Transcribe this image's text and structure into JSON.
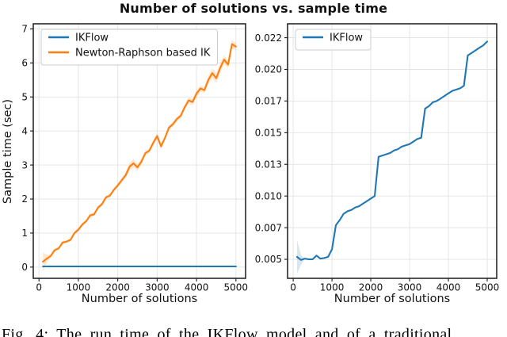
{
  "title": "Number of solutions vs. sample time",
  "caption": "Fig. 4: The run time of the IKFlow model and of a traditional",
  "colors": {
    "blue": "#1f77b4",
    "orange": "#ff7f0e",
    "grid": "#e3e3e3",
    "spine": "#1a1a1a",
    "legend_edge": "#cccccc"
  },
  "chart_data": [
    {
      "type": "line",
      "xlabel": "Number of solutions",
      "ylabel": "Sample time (sec)",
      "xlim": [
        -145,
        5245
      ],
      "ylim": [
        -0.33,
        7.15
      ],
      "xticks": [
        0,
        1000,
        2000,
        3000,
        4000,
        5000
      ],
      "xtick_labels": [
        "0",
        "1000",
        "2000",
        "3000",
        "4000",
        "5000"
      ],
      "yticks": [
        0,
        1,
        2,
        3,
        4,
        5,
        6,
        7
      ],
      "ytick_labels": [
        "0",
        "1",
        "2",
        "3",
        "4",
        "5",
        "6",
        "7"
      ],
      "grid": true,
      "legend_position": "upper-left",
      "series": [
        {
          "name": "IKFlow",
          "color": "#1f77b4",
          "x": [
            100,
            5000
          ],
          "y": [
            0.02,
            0.02
          ]
        },
        {
          "name": "Newton-Raphson based IK",
          "color": "#ff7f0e",
          "band_color": "rgba(255,127,14,0.18)",
          "x": [
            100,
            200,
            300,
            400,
            500,
            600,
            700,
            800,
            900,
            1000,
            1100,
            1200,
            1300,
            1400,
            1500,
            1600,
            1700,
            1800,
            1900,
            2000,
            2100,
            2200,
            2300,
            2400,
            2500,
            2600,
            2700,
            2800,
            2900,
            3000,
            3100,
            3200,
            3300,
            3400,
            3500,
            3600,
            3700,
            3800,
            3900,
            4000,
            4100,
            4200,
            4300,
            4400,
            4500,
            4600,
            4700,
            4800,
            4900,
            5000
          ],
          "y": [
            0.16,
            0.25,
            0.33,
            0.5,
            0.55,
            0.72,
            0.75,
            0.8,
            1.0,
            1.1,
            1.25,
            1.35,
            1.52,
            1.55,
            1.75,
            1.85,
            2.05,
            2.1,
            2.27,
            2.4,
            2.55,
            2.7,
            2.95,
            3.05,
            2.93,
            3.1,
            3.35,
            3.42,
            3.65,
            3.85,
            3.55,
            3.8,
            4.1,
            4.2,
            4.35,
            4.45,
            4.7,
            4.9,
            4.85,
            5.1,
            5.25,
            5.2,
            5.5,
            5.7,
            5.55,
            5.85,
            6.1,
            5.95,
            6.55,
            6.48
          ],
          "band": [
            0.28,
            0.12,
            0.05,
            0.05,
            0.04,
            0.05,
            0.04,
            0.04,
            0.05,
            0.05,
            0.06,
            0.05,
            0.06,
            0.05,
            0.06,
            0.05,
            0.06,
            0.05,
            0.06,
            0.06,
            0.07,
            0.08,
            0.12,
            0.12,
            0.1,
            0.09,
            0.07,
            0.07,
            0.08,
            0.09,
            0.08,
            0.07,
            0.07,
            0.07,
            0.07,
            0.07,
            0.08,
            0.09,
            0.1,
            0.1,
            0.09,
            0.09,
            0.12,
            0.14,
            0.15,
            0.14,
            0.13,
            0.12,
            0.12,
            0.1
          ]
        }
      ]
    },
    {
      "type": "line",
      "xlabel": "Number of solutions",
      "ylabel": "",
      "xlim": [
        -145,
        5245
      ],
      "ylim": [
        0.0035,
        0.0236
      ],
      "xticks": [
        0,
        1000,
        2000,
        3000,
        4000,
        5000
      ],
      "xtick_labels": [
        "0",
        "1000",
        "2000",
        "3000",
        "4000",
        "5000"
      ],
      "yticks": [
        0.005,
        0.0075,
        0.01,
        0.0125,
        0.015,
        0.0175,
        0.02,
        0.0225
      ],
      "ytick_labels": [
        "0.005",
        "0.007",
        "0.010",
        "0.013",
        "0.015",
        "0.017",
        "0.020",
        "0.022"
      ],
      "grid": true,
      "legend_position": "upper-left",
      "series": [
        {
          "name": "IKFlow",
          "color": "#1f77b4",
          "band_color": "rgba(31,119,180,0.18)",
          "x": [
            100,
            200,
            300,
            400,
            500,
            600,
            700,
            800,
            900,
            1000,
            1100,
            1200,
            1300,
            1400,
            1500,
            1600,
            1700,
            1800,
            1900,
            2000,
            2100,
            2200,
            2300,
            2400,
            2500,
            2600,
            2700,
            2800,
            2900,
            3000,
            3100,
            3200,
            3300,
            3400,
            3500,
            3600,
            3700,
            3800,
            3900,
            4000,
            4100,
            4200,
            4300,
            4400,
            4500,
            4600,
            4700,
            4800,
            4900,
            5000
          ],
          "y": [
            0.0052,
            0.00495,
            0.00505,
            0.005,
            0.005,
            0.0053,
            0.00505,
            0.0051,
            0.0052,
            0.0058,
            0.0077,
            0.0081,
            0.0086,
            0.0088,
            0.0089,
            0.0091,
            0.0092,
            0.0094,
            0.0096,
            0.0098,
            0.01,
            0.0131,
            0.0132,
            0.0133,
            0.0134,
            0.0136,
            0.0137,
            0.0139,
            0.014,
            0.0141,
            0.0143,
            0.0145,
            0.0146,
            0.0169,
            0.0171,
            0.0174,
            0.0175,
            0.0177,
            0.0179,
            0.0181,
            0.0183,
            0.0184,
            0.0185,
            0.0187,
            0.0211,
            0.0213,
            0.0215,
            0.0217,
            0.0219,
            0.0222
          ],
          "band": [
            0.0013,
            0.0004,
            0,
            0,
            0,
            0,
            0,
            0,
            0,
            0,
            0,
            0,
            0,
            0,
            0,
            0,
            0,
            0,
            0,
            0,
            0,
            0,
            0,
            0,
            0,
            0,
            0,
            0,
            0,
            0,
            0,
            0,
            0,
            0,
            0,
            0,
            0,
            0,
            0,
            0,
            0,
            0,
            0,
            0,
            0,
            0,
            0,
            0,
            0,
            0
          ]
        }
      ]
    }
  ]
}
